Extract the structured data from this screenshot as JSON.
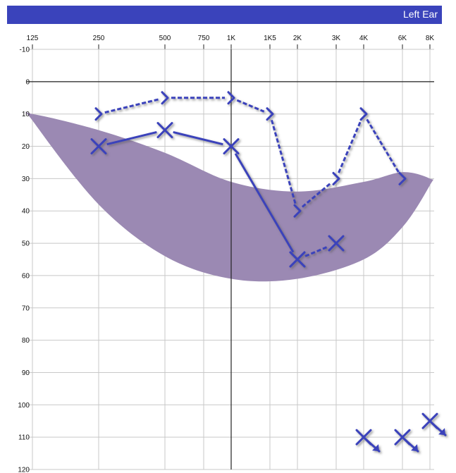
{
  "header": {
    "title": "Left Ear"
  },
  "chart_data": {
    "type": "line",
    "title": "Left Ear",
    "x_tick_labels": [
      "125",
      "250",
      "500",
      "750",
      "1K",
      "1K5",
      "2K",
      "3K",
      "4K",
      "6K",
      "8K"
    ],
    "x_frequencies_hz": [
      125,
      250,
      500,
      750,
      1000,
      1500,
      2000,
      3000,
      4000,
      6000,
      8000
    ],
    "y_tick_labels": [
      "-10",
      "0",
      "10",
      "20",
      "30",
      "40",
      "50",
      "60",
      "70",
      "80",
      "90",
      "100",
      "110",
      "120"
    ],
    "ylim": [
      -10,
      120
    ],
    "y_inverted": true,
    "grid": true,
    "shaded_region": {
      "upper_x": [
        125,
        250,
        500,
        1000,
        2000,
        4000,
        6000,
        8000
      ],
      "upper_y": [
        10,
        15,
        22,
        31,
        34,
        31,
        28,
        30
      ],
      "lower_x": [
        8000,
        6000,
        4000,
        2000,
        1000,
        500,
        250,
        125
      ],
      "lower_y": [
        32,
        45,
        55,
        61,
        61,
        54,
        38,
        12
      ],
      "color": "#9b89b3"
    },
    "series": [
      {
        "symbol": "X",
        "line_style": "solid",
        "x": [
          250,
          500,
          1000,
          2000
        ],
        "y": [
          20,
          15,
          20,
          55
        ]
      },
      {
        "symbol": "X",
        "line_style": "dashed",
        "x": [
          2000,
          3000
        ],
        "y": [
          55,
          50
        ]
      },
      {
        "symbol": ">",
        "line_style": "dashed",
        "x": [
          250,
          500,
          1000,
          1500,
          2000,
          3000,
          4000,
          6000
        ],
        "y": [
          10,
          5,
          5,
          10,
          40,
          30,
          10,
          30
        ]
      },
      {
        "symbol": "X-no-response",
        "line_style": "none",
        "x": [
          4000,
          6000,
          8000
        ],
        "y": [
          110,
          110,
          105
        ]
      }
    ],
    "colors": {
      "marker": "#3a43bb",
      "header": "#3a43bb",
      "grid": "#c8c8c8",
      "axis": "#222222"
    }
  }
}
